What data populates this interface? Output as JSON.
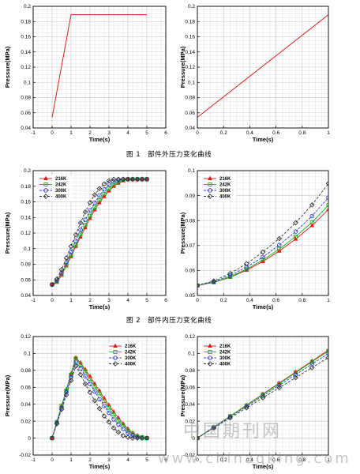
{
  "figure1_caption": "图 1　部件外压力变化曲线",
  "figure2_caption": "图 2　部件内压力变化曲线",
  "watermark": {
    "title": "中国期刊网",
    "url": "www.chinaqking.com"
  },
  "colors": {
    "216K": "#e8141b",
    "242K": "#10b810",
    "300K": "#2f3fdc",
    "400K": "#333333"
  },
  "chart_data": [
    {
      "type": "line",
      "xlabel": "Time(s)",
      "ylabel": "Pressure(MPa)",
      "xlim": [
        -1,
        6
      ],
      "ylim": [
        0.04,
        0.2
      ],
      "xticks": [
        -1,
        0,
        1,
        2,
        3,
        4,
        5,
        6
      ],
      "yticks": [
        0.04,
        0.06,
        0.08,
        0.1,
        0.12,
        0.14,
        0.16,
        0.18,
        0.2
      ],
      "grid": true,
      "series": [
        {
          "color": "#d42020",
          "x": [
            0,
            1,
            5
          ],
          "y": [
            0.054,
            0.189,
            0.189
          ]
        }
      ]
    },
    {
      "type": "line",
      "xlabel": "Time(s)",
      "ylabel": "Pressure(MPa)",
      "xlim": [
        0,
        1
      ],
      "ylim": [
        0.04,
        0.2
      ],
      "xticks": [
        0,
        0.2,
        0.4,
        0.6,
        0.8,
        1
      ],
      "yticks": [
        0.04,
        0.06,
        0.08,
        0.1,
        0.12,
        0.14,
        0.16,
        0.18,
        0.2
      ],
      "grid": true,
      "series": [
        {
          "color": "#d42020",
          "x": [
            0,
            1
          ],
          "y": [
            0.054,
            0.189
          ]
        }
      ]
    },
    {
      "type": "line",
      "xlabel": "Time(s)",
      "ylabel": "Pressure(MPa)",
      "xlim": [
        -1,
        6
      ],
      "ylim": [
        0.04,
        0.2
      ],
      "xticks": [
        -1,
        0,
        1,
        2,
        3,
        4,
        5,
        6
      ],
      "yticks": [
        0.04,
        0.06,
        0.08,
        0.1,
        0.12,
        0.14,
        0.16,
        0.18,
        0.2
      ],
      "grid": true,
      "legend": "top-left",
      "series": [
        {
          "name": "216K",
          "marker": "triangle",
          "x": [
            0,
            0.25,
            0.5,
            0.75,
            1,
            1.25,
            1.5,
            1.75,
            2,
            2.25,
            2.5,
            2.75,
            3,
            3.25,
            3.5,
            3.75,
            4,
            4.25,
            4.5,
            4.75,
            5
          ],
          "y": [
            0.054,
            0.057,
            0.066,
            0.078,
            0.09,
            0.103,
            0.115,
            0.127,
            0.139,
            0.15,
            0.159,
            0.167,
            0.174,
            0.18,
            0.184,
            0.187,
            0.189,
            0.189,
            0.189,
            0.189,
            0.189
          ]
        },
        {
          "name": "242K",
          "marker": "square",
          "x": [
            0,
            0.25,
            0.5,
            0.75,
            1,
            1.25,
            1.5,
            1.75,
            2,
            2.25,
            2.5,
            2.75,
            3,
            3.25,
            3.5,
            3.75,
            4,
            4.25,
            4.5,
            4.75,
            5
          ],
          "y": [
            0.054,
            0.058,
            0.067,
            0.079,
            0.092,
            0.105,
            0.118,
            0.13,
            0.142,
            0.153,
            0.162,
            0.17,
            0.177,
            0.182,
            0.186,
            0.188,
            0.189,
            0.189,
            0.189,
            0.189,
            0.189
          ]
        },
        {
          "name": "300K",
          "marker": "circle",
          "x": [
            0,
            0.25,
            0.5,
            0.75,
            1,
            1.25,
            1.5,
            1.75,
            2,
            2.25,
            2.5,
            2.75,
            3,
            3.25,
            3.5,
            3.75,
            4,
            4.25,
            4.5,
            4.75,
            5
          ],
          "y": [
            0.054,
            0.059,
            0.069,
            0.082,
            0.096,
            0.11,
            0.124,
            0.137,
            0.149,
            0.159,
            0.168,
            0.176,
            0.182,
            0.186,
            0.188,
            0.189,
            0.189,
            0.189,
            0.189,
            0.189,
            0.189
          ]
        },
        {
          "name": "400K",
          "marker": "diamond",
          "x": [
            0,
            0.25,
            0.5,
            0.75,
            1,
            1.25,
            1.5,
            1.75,
            2,
            2.25,
            2.5,
            2.75,
            3,
            3.25,
            3.5,
            3.75,
            4,
            4.25,
            4.5,
            4.75,
            5
          ],
          "y": [
            0.054,
            0.061,
            0.073,
            0.088,
            0.103,
            0.118,
            0.133,
            0.147,
            0.159,
            0.169,
            0.177,
            0.183,
            0.187,
            0.189,
            0.189,
            0.189,
            0.189,
            0.189,
            0.189,
            0.189,
            0.189
          ]
        }
      ]
    },
    {
      "type": "line",
      "xlabel": "Time(s)",
      "ylabel": "Pressure(MPa)",
      "xlim": [
        0,
        1
      ],
      "ylim": [
        0.05,
        0.1
      ],
      "xticks": [
        0,
        0.2,
        0.4,
        0.6,
        0.8,
        1
      ],
      "yticks": [
        0.05,
        0.06,
        0.07,
        0.08,
        0.09,
        0.1
      ],
      "grid": true,
      "legend": "top-left",
      "series": [
        {
          "name": "216K",
          "marker": "triangle",
          "x": [
            0,
            0.125,
            0.25,
            0.375,
            0.5,
            0.625,
            0.75,
            0.875,
            1
          ],
          "y": [
            0.054,
            0.0552,
            0.0573,
            0.0601,
            0.0636,
            0.0678,
            0.0726,
            0.078,
            0.0844
          ]
        },
        {
          "name": "242K",
          "marker": "square",
          "x": [
            0,
            0.125,
            0.25,
            0.375,
            0.5,
            0.625,
            0.75,
            0.875,
            1
          ],
          "y": [
            0.054,
            0.0553,
            0.0575,
            0.0605,
            0.0642,
            0.0686,
            0.0736,
            0.0793,
            0.0862
          ]
        },
        {
          "name": "300K",
          "marker": "circle",
          "x": [
            0,
            0.125,
            0.25,
            0.375,
            0.5,
            0.625,
            0.75,
            0.875,
            1
          ],
          "y": [
            0.054,
            0.0555,
            0.058,
            0.0613,
            0.0654,
            0.0702,
            0.0756,
            0.0818,
            0.0892
          ]
        },
        {
          "name": "400K",
          "marker": "diamond",
          "x": [
            0,
            0.125,
            0.25,
            0.375,
            0.5,
            0.625,
            0.75,
            0.875,
            1
          ],
          "y": [
            0.054,
            0.0558,
            0.0588,
            0.0627,
            0.0674,
            0.0728,
            0.0791,
            0.0863,
            0.0948
          ]
        }
      ]
    },
    {
      "type": "line",
      "xlabel": "Time(s)",
      "ylabel": "Pressure(MPa)",
      "xlim": [
        -1,
        6
      ],
      "ylim": [
        -0.02,
        0.12
      ],
      "xticks": [
        -1,
        0,
        1,
        2,
        3,
        4,
        5,
        6
      ],
      "yticks": [
        -0.02,
        0,
        0.02,
        0.04,
        0.06,
        0.08,
        0.1,
        0.12
      ],
      "grid": true,
      "legend": "top-right",
      "series": [
        {
          "name": "216K",
          "marker": "triangle",
          "x": [
            0,
            0.25,
            0.5,
            0.75,
            1,
            1.25,
            1.5,
            1.75,
            2,
            2.25,
            2.5,
            2.75,
            3,
            3.25,
            3.5,
            3.75,
            4,
            4.25,
            4.5,
            4.75,
            5
          ],
          "y": [
            0,
            0.019,
            0.038,
            0.057,
            0.076,
            0.095,
            0.089,
            0.081,
            0.073,
            0.064,
            0.056,
            0.047,
            0.039,
            0.031,
            0.024,
            0.017,
            0.011,
            0.006,
            0.003,
            0.001,
            0
          ]
        },
        {
          "name": "242K",
          "marker": "square",
          "x": [
            0,
            0.25,
            0.5,
            0.75,
            1,
            1.25,
            1.5,
            1.75,
            2,
            2.25,
            2.5,
            2.75,
            3,
            3.25,
            3.5,
            3.75,
            4,
            4.25,
            4.5,
            4.75,
            5
          ],
          "y": [
            0,
            0.019,
            0.038,
            0.056,
            0.075,
            0.094,
            0.087,
            0.079,
            0.07,
            0.061,
            0.053,
            0.044,
            0.036,
            0.028,
            0.021,
            0.015,
            0.009,
            0.005,
            0.002,
            0.001,
            0
          ]
        },
        {
          "name": "300K",
          "marker": "circle",
          "x": [
            0,
            0.25,
            0.5,
            0.75,
            1,
            1.25,
            1.5,
            1.75,
            2,
            2.25,
            2.5,
            2.75,
            3,
            3.25,
            3.5,
            3.75,
            4,
            4.25,
            4.5,
            4.75,
            5
          ],
          "y": [
            0,
            0.018,
            0.036,
            0.054,
            0.072,
            0.09,
            0.082,
            0.073,
            0.064,
            0.055,
            0.046,
            0.038,
            0.03,
            0.022,
            0.016,
            0.011,
            0.006,
            0.003,
            0.001,
            0,
            0
          ]
        },
        {
          "name": "400K",
          "marker": "diamond",
          "x": [
            0,
            0.25,
            0.5,
            0.75,
            1,
            1.25,
            1.5,
            1.75,
            2,
            2.25,
            2.5,
            2.75,
            3,
            3.25,
            3.5,
            3.75,
            4,
            4.25,
            4.5,
            4.75,
            5
          ],
          "y": [
            0,
            0.017,
            0.034,
            0.051,
            0.068,
            0.085,
            0.075,
            0.064,
            0.054,
            0.044,
            0.035,
            0.026,
            0.019,
            0.012,
            0.007,
            0.003,
            0.001,
            0,
            0,
            0,
            0
          ]
        }
      ]
    },
    {
      "type": "line",
      "xlabel": "Time(s)",
      "ylabel": "Pressure(MPa)",
      "xlim": [
        0,
        1
      ],
      "ylim": [
        -0.02,
        0.12
      ],
      "xticks": [
        0,
        0.2,
        0.4,
        0.6,
        0.8,
        1
      ],
      "yticks": [
        -0.02,
        0,
        0.02,
        0.04,
        0.06,
        0.08,
        0.1,
        0.12
      ],
      "grid": true,
      "legend": "top-left",
      "series": [
        {
          "name": "216K",
          "marker": "triangle",
          "x": [
            0,
            0.125,
            0.25,
            0.375,
            0.5,
            0.625,
            0.75,
            0.875,
            1
          ],
          "y": [
            0,
            0.013,
            0.026,
            0.039,
            0.052,
            0.065,
            0.078,
            0.091,
            0.104
          ]
        },
        {
          "name": "242K",
          "marker": "square",
          "x": [
            0,
            0.125,
            0.25,
            0.375,
            0.5,
            0.625,
            0.75,
            0.875,
            1
          ],
          "y": [
            0,
            0.0129,
            0.0258,
            0.0386,
            0.0515,
            0.0644,
            0.0773,
            0.0901,
            0.103
          ]
        },
        {
          "name": "300K",
          "marker": "circle",
          "x": [
            0,
            0.125,
            0.25,
            0.375,
            0.5,
            0.625,
            0.75,
            0.875,
            1
          ],
          "y": [
            0,
            0.0125,
            0.025,
            0.0375,
            0.05,
            0.0625,
            0.075,
            0.0875,
            0.1
          ]
        },
        {
          "name": "400K",
          "marker": "diamond",
          "x": [
            0,
            0.125,
            0.25,
            0.375,
            0.5,
            0.625,
            0.75,
            0.875,
            1
          ],
          "y": [
            0,
            0.0119,
            0.0239,
            0.0357,
            0.0476,
            0.0595,
            0.0714,
            0.0833,
            0.0952
          ]
        }
      ]
    }
  ]
}
